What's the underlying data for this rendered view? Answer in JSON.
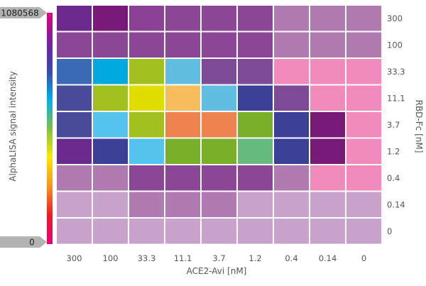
{
  "chart_data": {
    "type": "heatmap",
    "xlabel": "ACE2-Avi [nM]",
    "ylabel": "RBD-Fc [nM]",
    "x_categories": [
      "300",
      "100",
      "33.3",
      "11.1",
      "3.7",
      "1.2",
      "0.4",
      "0.14",
      "0"
    ],
    "y_categories": [
      "300",
      "100",
      "33.3",
      "11.1",
      "3.7",
      "1.2",
      "0.4",
      "0.14",
      "0"
    ],
    "colorbar": {
      "label": "AlphaLISA signal intensity",
      "max_label": "1080568",
      "min_label": "0",
      "max": 1080568,
      "min": 0,
      "gradient": [
        "#e6007e",
        "#7b1fa2",
        "#3949ab",
        "#00aeef",
        "#7cc242",
        "#ffe600",
        "#f7941d",
        "#ed1c24",
        "#e6007e"
      ]
    },
    "cell_colors": [
      [
        "#6b2a8e",
        "#7a1a78",
        "#8a4295",
        "#8b4696",
        "#8b4696",
        "#8b4696",
        "#b07bb0",
        "#b07bb0",
        "#b07bb0"
      ],
      [
        "#8c4696",
        "#8c4696",
        "#8c4696",
        "#8c4696",
        "#8c4696",
        "#8c4696",
        "#b07bb0",
        "#b07bb0",
        "#b07bb0"
      ],
      [
        "#3b69b3",
        "#00a9df",
        "#a2c11f",
        "#61bde1",
        "#7d4a97",
        "#7d4a97",
        "#f08bbb",
        "#f08bbb",
        "#f08bbb"
      ],
      [
        "#4a4a9a",
        "#a2c11f",
        "#e2dd00",
        "#f7bd5d",
        "#61bde1",
        "#3b4096",
        "#7d4a97",
        "#f08bbb",
        "#f08bbb"
      ],
      [
        "#4a4a9a",
        "#55c3ef",
        "#a2c11f",
        "#ee8350",
        "#ee8350",
        "#7aaf2c",
        "#3b4096",
        "#7a1a78",
        "#f08bbb"
      ],
      [
        "#6b2a8e",
        "#3b4096",
        "#55c3ef",
        "#7aaf2c",
        "#7aaf2c",
        "#66ba7f",
        "#3b4096",
        "#7a1a78",
        "#f08bbb"
      ],
      [
        "#b07bb0",
        "#b07bb0",
        "#8c4696",
        "#8c4696",
        "#8c4696",
        "#8c4696",
        "#b07bb0",
        "#f08bbb",
        "#f08bbb"
      ],
      [
        "#c8a3cc",
        "#c8a3cc",
        "#b07bb0",
        "#b07bb0",
        "#b07bb0",
        "#c8a3cc",
        "#c8a3cc",
        "#c8a3cc",
        "#c8a3cc"
      ],
      [
        "#c8a3cc",
        "#c8a3cc",
        "#c8a3cc",
        "#c8a3cc",
        "#c8a3cc",
        "#c8a3cc",
        "#c8a3cc",
        "#c8a3cc",
        "#c8a3cc"
      ]
    ]
  }
}
